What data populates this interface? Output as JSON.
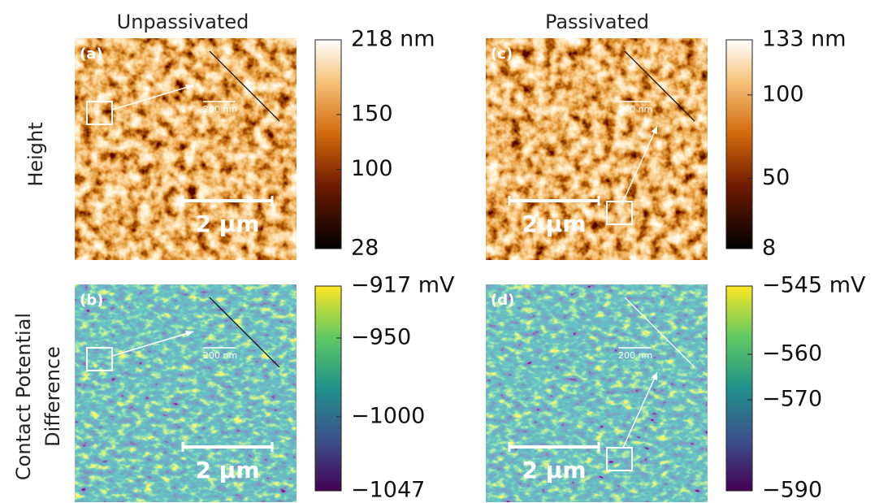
{
  "columns": [
    "Unpassivated",
    "Passivated"
  ],
  "row_labels": {
    "height": "Height",
    "cpd": [
      "Contact Potential",
      "Difference"
    ]
  },
  "panels": [
    {
      "label": "(a)",
      "scale_bar": "2 µm",
      "inset_scale_bar": "200 nm",
      "colorbar": {
        "lim": [
          28,
          218
        ],
        "ticks": [
          28,
          100,
          150,
          {
            "value": 218,
            "label": "218 nm"
          }
        ]
      }
    },
    {
      "label": "(b)",
      "scale_bar": "2 µm",
      "inset_scale_bar": "200 nm",
      "colorbar": {
        "lim": [
          -1047,
          -917
        ],
        "ticks": [
          {
            "value": -1047,
            "label": "−1047"
          },
          {
            "value": -1000,
            "label": "−1000"
          },
          {
            "value": -950,
            "label": "−950"
          },
          {
            "value": -917,
            "label": "−917 mV"
          }
        ]
      }
    },
    {
      "label": "(c)",
      "scale_bar": "2 µm",
      "inset_scale_bar": "200 nm",
      "colorbar": {
        "lim": [
          8,
          133
        ],
        "ticks": [
          8,
          50,
          100,
          {
            "value": 133,
            "label": "133 nm"
          }
        ]
      }
    },
    {
      "label": "(d)",
      "scale_bar": "2 µm",
      "inset_scale_bar": "200 nm",
      "colorbar": {
        "lim": [
          -590,
          -545
        ],
        "ticks": [
          {
            "value": -590,
            "label": "−590"
          },
          {
            "value": -570,
            "label": "−570"
          },
          {
            "value": -560,
            "label": "−560"
          },
          {
            "value": -545,
            "label": "−545 mV"
          }
        ]
      }
    }
  ]
}
